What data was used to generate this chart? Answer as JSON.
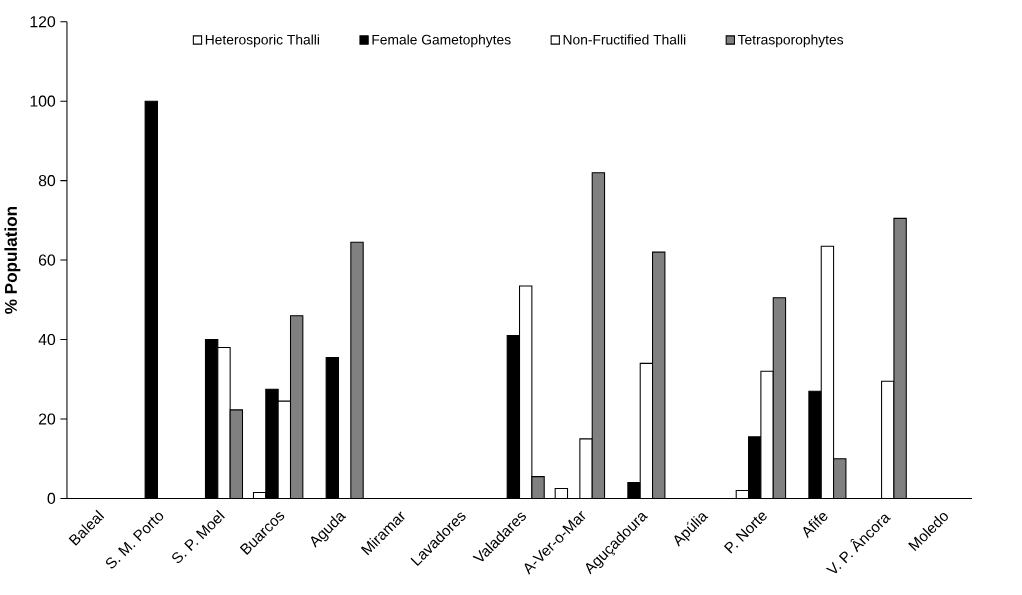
{
  "chart_data": {
    "type": "bar",
    "ylabel": "% Population",
    "categories": [
      "Baleal",
      "S. M. Porto",
      "S. P. Moel",
      "Buarcos",
      "Aguda",
      "Miramar",
      "Lavadores",
      "Valadares",
      "A-Ver-o-Mar",
      "Aguçadoura",
      "Apúlia",
      "P. Norte",
      "Afife",
      "V. P. Âncora",
      "Moledo"
    ],
    "series": [
      {
        "name": "Heterosporic  Thalli",
        "color": "#ffffff",
        "values": [
          null,
          null,
          null,
          1.5,
          null,
          null,
          null,
          null,
          2.5,
          null,
          null,
          2,
          null,
          null,
          null
        ]
      },
      {
        "name": "Female Gametophytes",
        "color": "#000000",
        "values": [
          null,
          100,
          40,
          27.5,
          35.5,
          null,
          null,
          41,
          null,
          4,
          null,
          15.5,
          27,
          null,
          null
        ]
      },
      {
        "name": "Non-Fructified Thalli",
        "color": "#ffffff",
        "values": [
          null,
          null,
          38,
          24.5,
          null,
          null,
          null,
          53.5,
          15,
          34,
          null,
          32,
          63.5,
          29.5,
          null
        ]
      },
      {
        "name": "Tetrasporophytes",
        "color": "#808080",
        "values": [
          null,
          null,
          22.3,
          46,
          64.5,
          null,
          null,
          5.5,
          82,
          62,
          null,
          50.5,
          10,
          70.5,
          null
        ]
      }
    ],
    "ylim": [
      0,
      120
    ],
    "yticks": [
      0,
      20,
      40,
      60,
      80,
      100,
      120
    ],
    "grid": false,
    "legend": "top"
  }
}
